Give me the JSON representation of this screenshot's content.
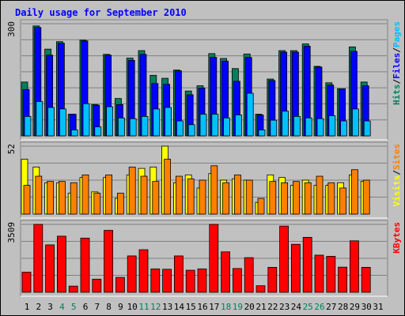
{
  "title": "Daily usage for September 2010",
  "colors": {
    "background": "#c0c0c0",
    "panel_border_dark": "#808080",
    "panel_border_light": "#ffffff",
    "grid": "#808080",
    "title": "#0000ff",
    "weekday_label": "#000000",
    "weekend_label": "#00805c",
    "hits": "#00805c",
    "files": "#0000ff",
    "pages": "#00c0ff",
    "visits": "#ffff00",
    "sites": "#ff8000",
    "kbytes": "#ff0000"
  },
  "chart_data": [
    {
      "type": "bar",
      "panel": "hits_files_pages",
      "ymax_label": "300",
      "ylim": [
        0,
        300
      ],
      "grid": true,
      "legend": [
        {
          "key": "hits",
          "text": "Hits"
        },
        {
          "key": "sep",
          "text": "/"
        },
        {
          "key": "files",
          "text": "Files"
        },
        {
          "key": "sep",
          "text": "/"
        },
        {
          "key": "pages",
          "text": "Pages"
        }
      ],
      "categories": [
        "1",
        "2",
        "3",
        "4",
        "5",
        "6",
        "7",
        "8",
        "9",
        "10",
        "11",
        "12",
        "13",
        "14",
        "15",
        "16",
        "17",
        "18",
        "19",
        "20",
        "21",
        "22",
        "23",
        "24",
        "25",
        "26",
        "27",
        "28",
        "29",
        "30",
        "31"
      ],
      "weekend": [
        4,
        5,
        11,
        12,
        18,
        19,
        25,
        26
      ],
      "series": [
        {
          "name": "Hits",
          "key": "hits",
          "values": [
            144,
            294,
            232,
            252,
            58,
            256,
            84,
            218,
            100,
            208,
            228,
            162,
            154,
            176,
            120,
            134,
            220,
            207,
            180,
            219,
            58,
            152,
            228,
            228,
            246,
            186,
            142,
            126,
            238,
            144,
            0
          ]
        },
        {
          "name": "Files",
          "key": "files",
          "values": [
            124,
            290,
            216,
            248,
            58,
            254,
            82,
            216,
            84,
            202,
            218,
            140,
            138,
            174,
            110,
            128,
            210,
            200,
            146,
            210,
            56,
            148,
            224,
            224,
            240,
            184,
            136,
            126,
            226,
            134,
            0
          ]
        },
        {
          "name": "Pages",
          "key": "pages",
          "values": [
            52,
            92,
            76,
            72,
            16,
            86,
            24,
            78,
            48,
            46,
            52,
            72,
            76,
            40,
            30,
            58,
            58,
            48,
            56,
            114,
            16,
            42,
            66,
            52,
            48,
            46,
            54,
            40,
            72,
            40,
            0
          ]
        }
      ]
    },
    {
      "type": "bar",
      "panel": "visits_sites",
      "ymax_label": "52",
      "ylim": [
        0,
        52
      ],
      "grid": true,
      "legend": [
        {
          "key": "visits",
          "text": "Visits"
        },
        {
          "key": "sep",
          "text": "/"
        },
        {
          "key": "sites",
          "text": "Sites"
        }
      ],
      "categories": [
        "1",
        "2",
        "3",
        "4",
        "5",
        "6",
        "7",
        "8",
        "9",
        "10",
        "11",
        "12",
        "13",
        "14",
        "15",
        "16",
        "17",
        "18",
        "19",
        "20",
        "21",
        "22",
        "23",
        "24",
        "25",
        "26",
        "27",
        "28",
        "29",
        "30",
        "31"
      ],
      "weekend": [
        4,
        5,
        11,
        12,
        18,
        19,
        25,
        26
      ],
      "series": [
        {
          "name": "Visits",
          "key": "visits",
          "values": [
            42,
            36,
            24,
            24,
            16,
            28,
            17,
            28,
            12,
            30,
            35,
            36,
            52,
            24,
            30,
            20,
            31,
            26,
            27,
            26,
            9,
            30,
            28,
            22,
            26,
            22,
            22,
            24,
            30,
            25,
            0
          ]
        },
        {
          "name": "Sites",
          "key": "sites",
          "values": [
            22,
            29,
            25,
            25,
            24,
            30,
            16,
            30,
            16,
            36,
            29,
            25,
            42,
            29,
            27,
            26,
            37,
            24,
            30,
            26,
            12,
            25,
            24,
            25,
            24,
            29,
            24,
            20,
            34,
            26,
            0
          ]
        }
      ]
    },
    {
      "type": "bar",
      "panel": "kbytes",
      "ymax_label": "3509",
      "ylim": [
        0,
        3509
      ],
      "grid": true,
      "legend": [
        {
          "key": "kbytes",
          "text": "KBytes"
        }
      ],
      "categories": [
        "1",
        "2",
        "3",
        "4",
        "5",
        "6",
        "7",
        "8",
        "9",
        "10",
        "11",
        "12",
        "13",
        "14",
        "15",
        "16",
        "17",
        "18",
        "19",
        "20",
        "21",
        "22",
        "23",
        "24",
        "25",
        "26",
        "27",
        "28",
        "29",
        "30",
        "31"
      ],
      "weekend": [
        4,
        5,
        11,
        12,
        18,
        19,
        25,
        26
      ],
      "series": [
        {
          "name": "KBytes",
          "key": "kbytes",
          "values": [
            1040,
            3509,
            2450,
            2900,
            320,
            2800,
            680,
            3200,
            770,
            1880,
            2200,
            1210,
            1190,
            1880,
            1140,
            1210,
            3509,
            2090,
            1230,
            1790,
            340,
            1290,
            3420,
            2480,
            2840,
            1920,
            1860,
            1300,
            2660,
            1290,
            0
          ]
        }
      ]
    }
  ]
}
